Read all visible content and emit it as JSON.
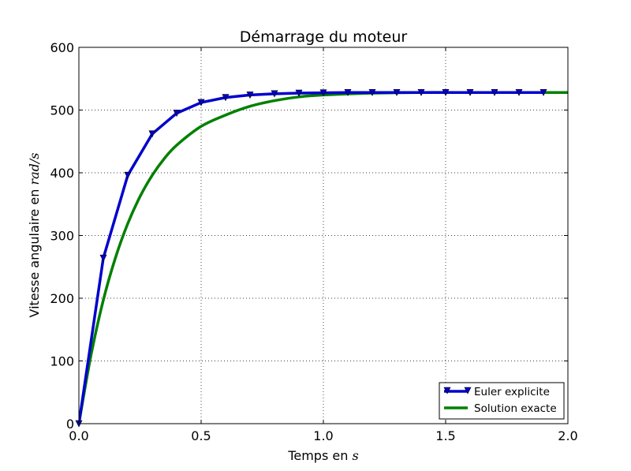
{
  "chart_data": {
    "type": "line",
    "title": "Démarrage du moteur",
    "xlabel": "Temps en",
    "xlabel_math": "s",
    "ylabel": "Vitesse angulaire en",
    "ylabel_math": "rad/s",
    "xlim": [
      0.0,
      2.0
    ],
    "ylim": [
      0,
      600
    ],
    "xticks": [
      "0.0",
      "0.5",
      "1.0",
      "1.5",
      "2.0"
    ],
    "xtick_values": [
      0.0,
      0.5,
      1.0,
      1.5,
      2.0
    ],
    "yticks": [
      "0",
      "100",
      "200",
      "300",
      "400",
      "500",
      "600"
    ],
    "ytick_values": [
      0,
      100,
      200,
      300,
      400,
      500,
      600
    ],
    "grid": true,
    "legend_position": "lower-right",
    "series": [
      {
        "name": "Euler explicite",
        "color": "#0000cc",
        "marker": "triangle-down",
        "x": [
          0.0,
          0.1,
          0.2,
          0.3,
          0.4,
          0.5,
          0.6,
          0.7,
          0.8,
          0.9,
          1.0,
          1.1,
          1.2,
          1.3,
          1.4,
          1.5,
          1.6,
          1.7,
          1.8,
          1.9
        ],
        "y": [
          0,
          264,
          396,
          462,
          495,
          512,
          520,
          524,
          526,
          527,
          527.5,
          528,
          528,
          528,
          528,
          528,
          528,
          528,
          528,
          528
        ]
      },
      {
        "name": "Solution exacte",
        "color": "#008000",
        "marker": "none",
        "x": [
          0.0,
          0.05,
          0.1,
          0.15,
          0.2,
          0.25,
          0.3,
          0.35,
          0.4,
          0.5,
          0.6,
          0.7,
          0.8,
          0.9,
          1.0,
          1.2,
          1.4,
          1.6,
          1.8,
          2.0
        ],
        "y": [
          0,
          110,
          197,
          265,
          319,
          362,
          396,
          423,
          444,
          474,
          492,
          506,
          515,
          521,
          524,
          527,
          528,
          528,
          528,
          528
        ]
      }
    ]
  }
}
